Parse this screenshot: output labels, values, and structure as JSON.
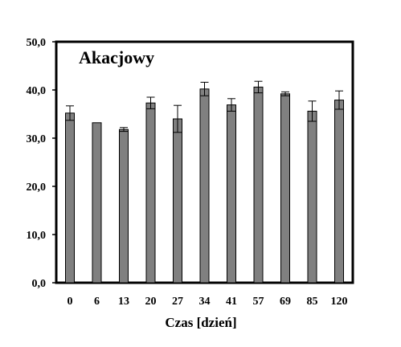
{
  "chart_data": {
    "type": "bar",
    "title": "Akacjowy",
    "xlabel": "Czas [dzień]",
    "ylabel": "",
    "categories": [
      "0",
      "6",
      "13",
      "20",
      "27",
      "34",
      "41",
      "57",
      "69",
      "85",
      "120"
    ],
    "series": [
      {
        "values": [
          35.2,
          33.2,
          31.8,
          37.3,
          34.0,
          40.2,
          36.9,
          40.6,
          39.2,
          35.6,
          37.9
        ],
        "error": [
          1.5,
          0,
          0.4,
          1.2,
          2.8,
          1.4,
          1.3,
          1.2,
          0.4,
          2.1,
          1.9
        ]
      }
    ],
    "ylim": [
      0,
      50
    ],
    "yticks": [
      0,
      10,
      20,
      30,
      40,
      50
    ],
    "ytick_labels": [
      "0,0",
      "10,0",
      "20,0",
      "30,0",
      "40,0",
      "50,0"
    ],
    "grid": false,
    "colors": {
      "bar_fill": "#808080",
      "bar_stroke": "#000000",
      "axis": "#000000"
    }
  }
}
